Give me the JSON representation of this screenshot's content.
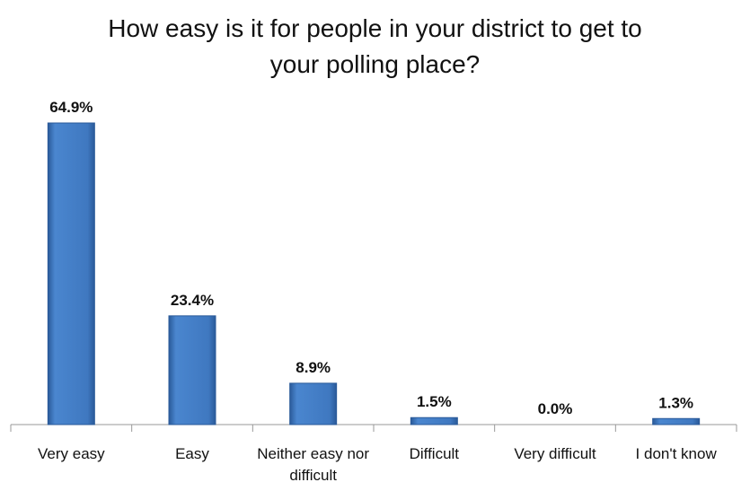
{
  "chart_data": {
    "type": "bar",
    "title": "How easy is it for people in your district to get to your polling place?",
    "categories": [
      "Very easy",
      "Easy",
      "Neither easy nor difficult",
      "Difficult",
      "Very difficult",
      "I don't know"
    ],
    "values": [
      64.9,
      23.4,
      8.9,
      1.5,
      0.0,
      1.3
    ],
    "value_labels": [
      "64.9%",
      "23.4%",
      "8.9%",
      "1.5%",
      "0.0%",
      "1.3%"
    ],
    "color": "#3f78c0"
  }
}
